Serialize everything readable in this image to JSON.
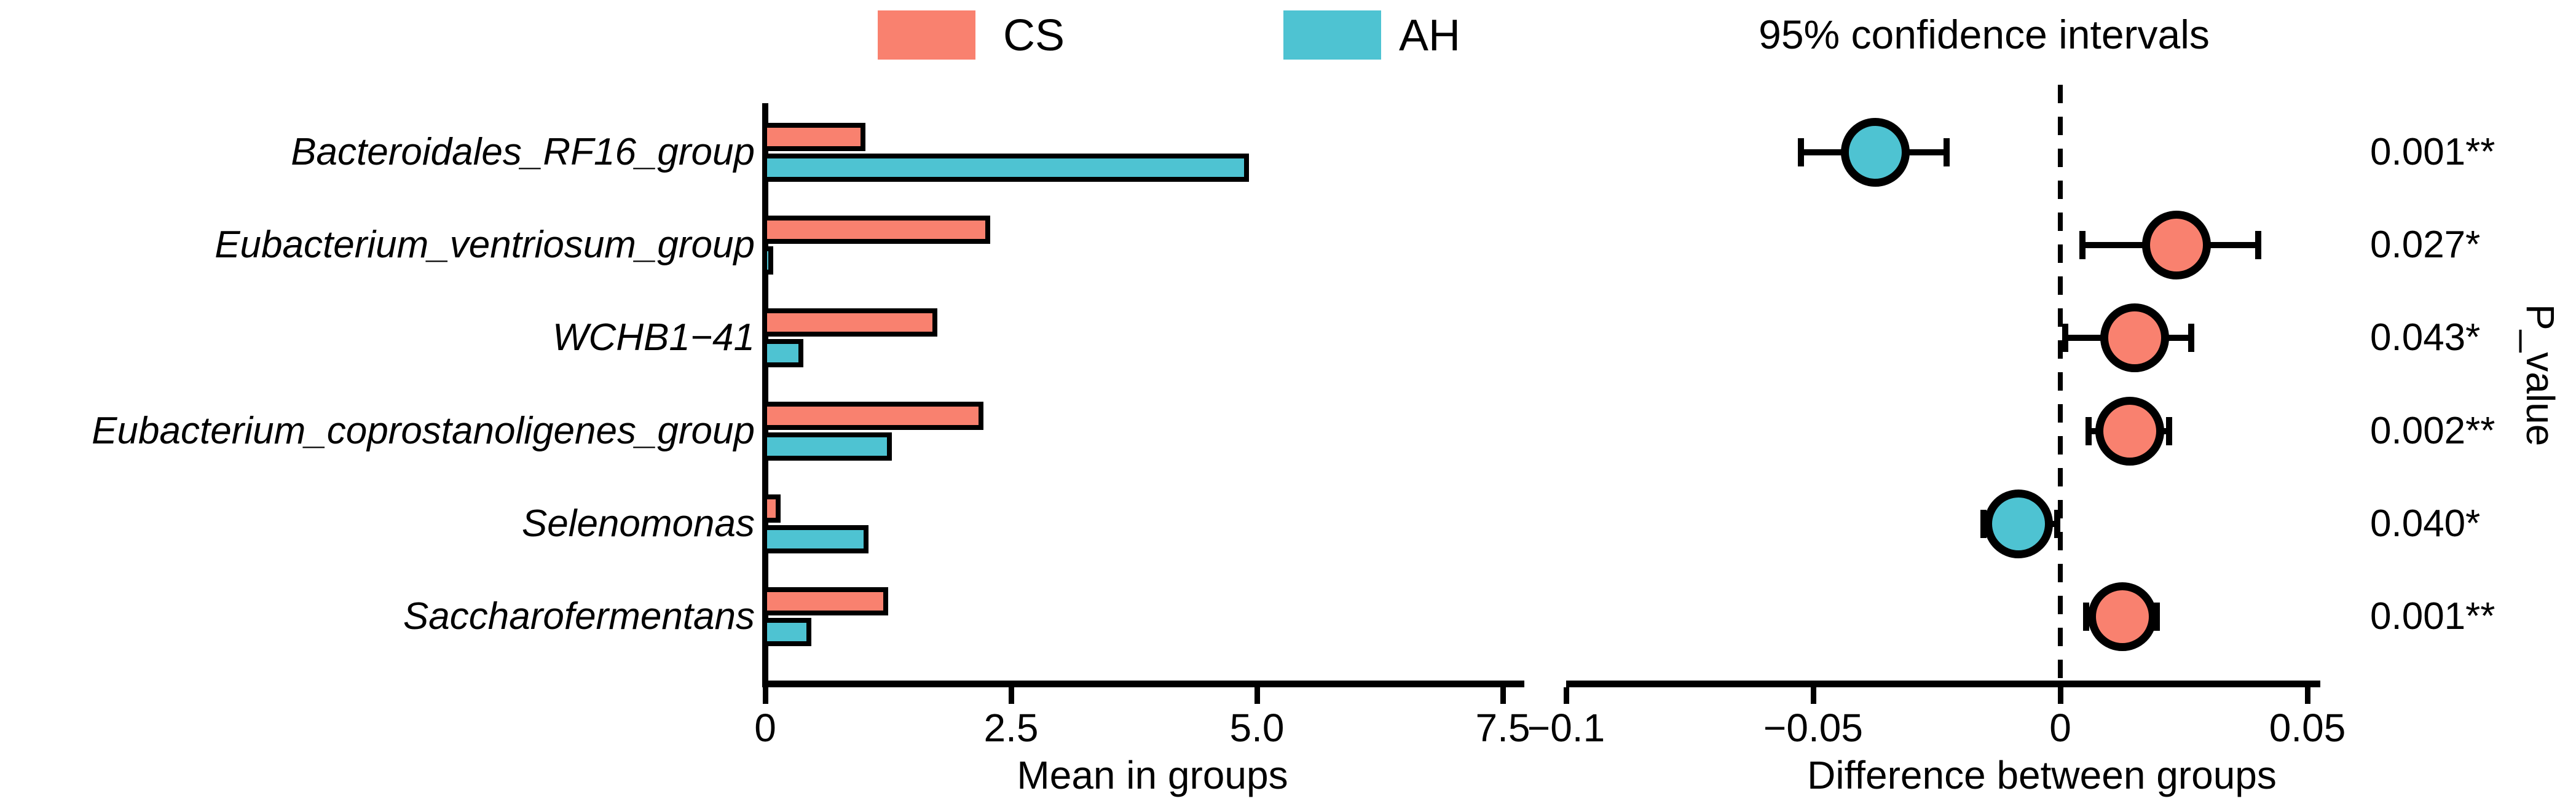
{
  "legend": {
    "items": [
      {
        "label": "CS",
        "color": "#F9816F"
      },
      {
        "label": "AH",
        "color": "#4EC3D2"
      }
    ]
  },
  "chart_data": [
    {
      "type": "bar",
      "panel": "left",
      "orientation": "horizontal",
      "xlabel": "Mean in groups",
      "categories": [
        "Bacteroidales_RF16_group",
        "Eubacterium_ventriosum_group",
        "WCHB1−41",
        "Eubacterium_coprostanoligenes_group",
        "Selenomonas",
        "Saccharofermentans"
      ],
      "series": [
        {
          "name": "CS",
          "color": "#F9816F",
          "values": [
            1.05,
            2.32,
            1.78,
            2.25,
            0.19,
            1.28
          ]
        },
        {
          "name": "AH",
          "color": "#4EC3D2",
          "values": [
            4.95,
            0.11,
            0.42,
            1.32,
            1.08,
            0.5
          ]
        }
      ],
      "xlim": [
        0,
        7.7
      ],
      "xticks": [
        {
          "value": 0,
          "label": "0"
        },
        {
          "value": 2.5,
          "label": "2.5"
        },
        {
          "value": 5,
          "label": "5.0"
        },
        {
          "value": 7.5,
          "label": "7.5"
        }
      ],
      "grid": false
    },
    {
      "type": "scatter",
      "panel": "right",
      "subtype": "mean-difference-95ci",
      "title": "95% confidence intervals",
      "xlabel": "Difference between groups",
      "right_axis_label": "P_value",
      "categories": [
        "Bacteroidales_RF16_group",
        "Eubacterium_ventriosum_group",
        "WCHB1−41",
        "Eubacterium_coprostanoligenes_group",
        "Selenomonas",
        "Saccharofermentans"
      ],
      "points": [
        {
          "mean": -0.0375,
          "ci_low": -0.0525,
          "ci_high": -0.023,
          "enriched": "AH",
          "p_label": "0.001**"
        },
        {
          "mean": 0.0235,
          "ci_low": 0.0045,
          "ci_high": 0.04,
          "enriched": "CS",
          "p_label": "0.027*"
        },
        {
          "mean": 0.015,
          "ci_low": 0.001,
          "ci_high": 0.0265,
          "enriched": "CS",
          "p_label": "0.043*"
        },
        {
          "mean": 0.014,
          "ci_low": 0.0057,
          "ci_high": 0.022,
          "enriched": "CS",
          "p_label": "0.002**"
        },
        {
          "mean": -0.0084,
          "ci_low": -0.0155,
          "ci_high": -0.0006,
          "enriched": "AH",
          "p_label": "0.040*"
        },
        {
          "mean": 0.0125,
          "ci_low": 0.0052,
          "ci_high": 0.0195,
          "enriched": "CS",
          "p_label": "0.001**"
        }
      ],
      "xlim": [
        -0.105,
        0.055
      ],
      "xticks": [
        {
          "value": -0.1,
          "label": "−0.1"
        },
        {
          "value": -0.05,
          "label": "−0.05"
        },
        {
          "value": 0,
          "label": "0"
        },
        {
          "value": 0.05,
          "label": "0.05"
        }
      ],
      "zero_line_dashed": true
    }
  ]
}
